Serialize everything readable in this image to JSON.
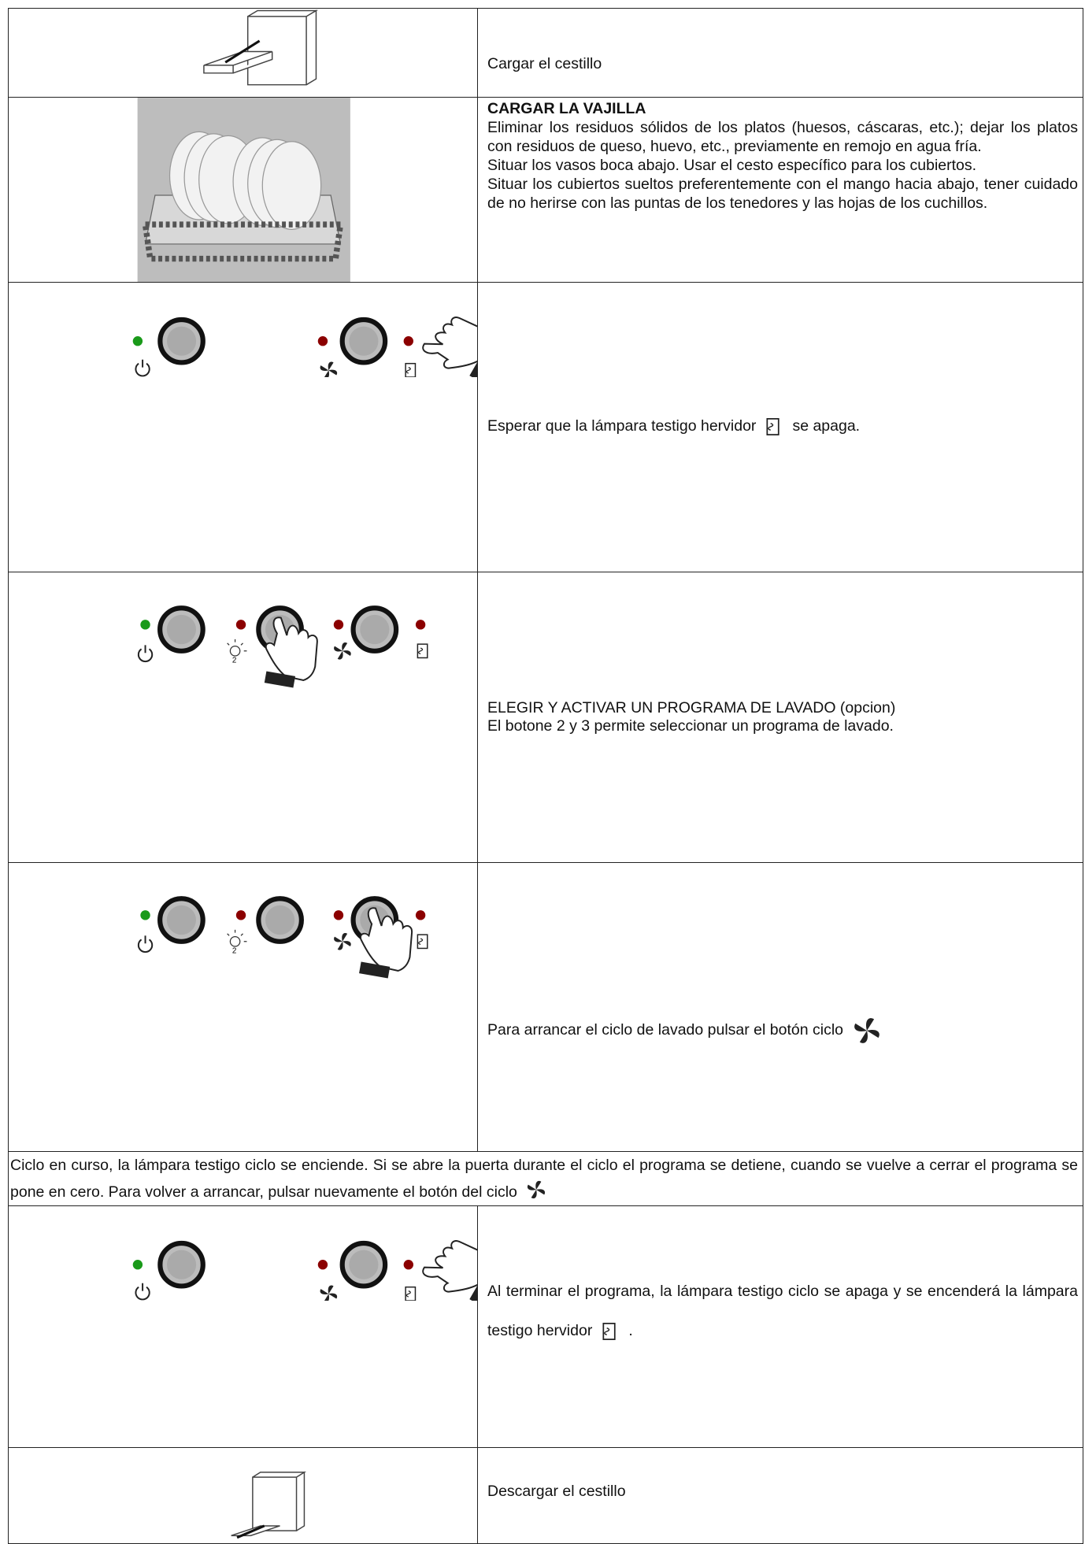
{
  "rows": [
    {
      "text": "Cargar el cestillo"
    },
    {
      "heading": "CARGAR LA VAJILLA",
      "paragraphs": [
        "Eliminar los residuos sólidos de los platos (huesos, cáscaras, etc.); dejar los platos con residuos de queso, huevo, etc., previamente en remojo en agua fría.",
        "Situar los vasos boca abajo. Usar el cesto específico para los cubiertos.",
        "Situar los cubiertos sueltos preferentemente con el mango hacia abajo, tener cuidado de no herirse con las puntas de los tenedores y las hojas de los cuchillos."
      ]
    },
    {
      "text_before": "Esperar que la lámpara testigo hervidor",
      "text_after": "se apaga."
    },
    {
      "lines": [
        "ELEGIR Y ACTIVAR UN PROGRAMA DE LAVADO (opcion)",
        "El botone 2 y 3 permite seleccionar un programa de lavado."
      ]
    },
    {
      "text": "Para arrancar el ciclo de lavado pulsar el botón ciclo"
    },
    {
      "note": "Ciclo en curso, la lámpara testigo ciclo se enciende. Si se abre la puerta durante el ciclo el programa se detiene, cuando se vuelve a cerrar el programa se pone en cero. Para volver a arrancar, pulsar nuevamente el botón del ciclo"
    },
    {
      "text_before": "Al terminar el programa, la lámpara testigo ciclo se apaga y se encenderá la lámpara testigo hervidor",
      "text_after": "."
    },
    {
      "text": "Descargar el cestillo"
    }
  ]
}
